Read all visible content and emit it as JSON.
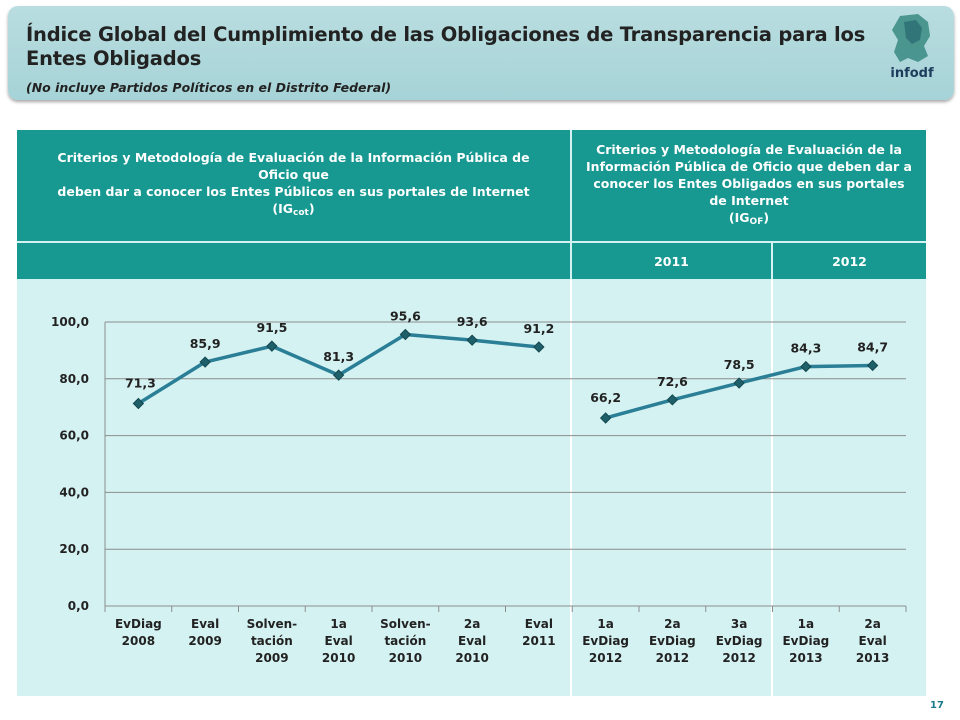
{
  "header": {
    "title": "Índice Global del Cumplimiento de las Obligaciones de Transparencia para los Entes Obligados",
    "subtitle": "(No incluye Partidos Políticos en el Distrito Federal)",
    "logo_text": "infodf"
  },
  "table": {
    "left_header": {
      "line1": "Criterios y Metodología de Evaluación de la Información Pública de Oficio que",
      "line2": "deben dar a conocer los Entes Públicos en sus portales de Internet",
      "code_prefix": "(IG",
      "code_sub": "cot",
      "code_suffix": ")"
    },
    "right_header": {
      "text": "Criterios y Metodología de Evaluación de la Información Pública de Oficio que deben dar a conocer los Entes Obligados en sus portales de Internet",
      "code_prefix": "(IG",
      "code_sub": "OF",
      "code_suffix": ")"
    },
    "years": [
      "2011",
      "2012"
    ]
  },
  "page_number": "17",
  "colors": {
    "line": "#2a7f96",
    "marker": "#1f5f6a",
    "header_bg": "#179891",
    "panel_bg": "#d5f2f2"
  },
  "chart_data": {
    "type": "line",
    "categories": [
      [
        "EvDiag",
        "2008"
      ],
      [
        "Eval",
        "2009"
      ],
      [
        "Solven-",
        "tación",
        "2009"
      ],
      [
        "1a",
        "Eval",
        "2010"
      ],
      [
        "Solven-",
        "tación",
        "2010"
      ],
      [
        "2a",
        "Eval",
        "2010"
      ],
      [
        "Eval",
        "2011"
      ],
      [
        "1a",
        "EvDiag",
        "2012"
      ],
      [
        "2a",
        "EvDiag",
        "2012"
      ],
      [
        "3a",
        "EvDiag",
        "2012"
      ],
      [
        "1a",
        "EvDiag",
        "2013"
      ],
      [
        "2a",
        "Eval",
        "2013"
      ]
    ],
    "segments": [
      [
        0,
        6
      ],
      [
        7,
        11
      ]
    ],
    "values": [
      71.3,
      85.9,
      91.5,
      81.3,
      95.6,
      93.6,
      91.2,
      66.2,
      72.6,
      78.5,
      84.3,
      84.7
    ],
    "value_labels": [
      "71,3",
      "85,9",
      "91,5",
      "81,3",
      "95,6",
      "93,6",
      "91,2",
      "66,2",
      "72,6",
      "78,5",
      "84,3",
      "84,7"
    ],
    "yticks": [
      "0,0",
      "20,0",
      "40,0",
      "60,0",
      "80,0",
      "100,0"
    ],
    "ylim": [
      0,
      100
    ],
    "grid": true
  }
}
